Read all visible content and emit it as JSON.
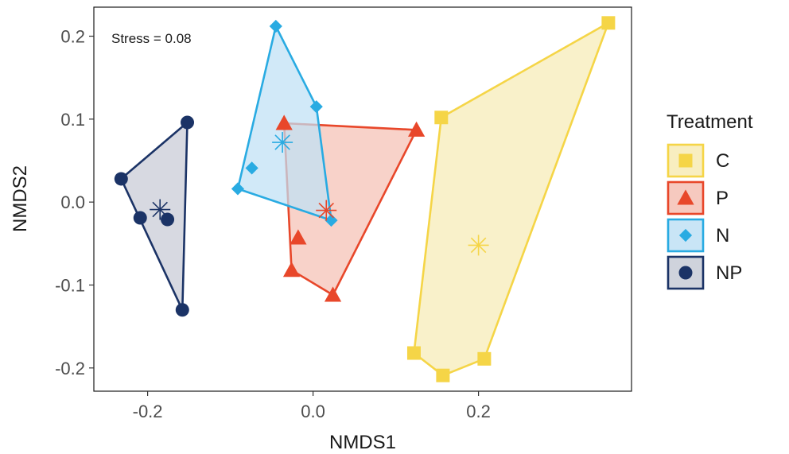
{
  "chart_data": {
    "type": "scatter",
    "xlabel": "NMDS1",
    "ylabel": "NMDS2",
    "xlim": [
      -0.265,
      0.385
    ],
    "ylim": [
      -0.228,
      0.235
    ],
    "x_ticks": [
      -0.2,
      0.0,
      0.2
    ],
    "x_tick_labels": [
      "-0.2",
      "0.0",
      "0.2"
    ],
    "y_ticks": [
      0.2,
      0.1,
      0.0,
      -0.1,
      -0.2
    ],
    "y_tick_labels": [
      "0.2",
      "0.1",
      "0.0",
      "-0.1",
      "-0.2"
    ],
    "grid": false,
    "annotation": "Stress = 0.08",
    "legend": {
      "title": "Treatment",
      "position": "right"
    },
    "series": [
      {
        "name": "C",
        "color": "#F5D547",
        "fill": "#F7EBB5",
        "marker": "square",
        "points": [
          [
            0.357,
            0.216
          ],
          [
            0.155,
            0.102
          ],
          [
            0.122,
            -0.182
          ],
          [
            0.157,
            -0.209
          ],
          [
            0.207,
            -0.189
          ]
        ],
        "hull": [
          [
            0.357,
            0.216
          ],
          [
            0.155,
            0.102
          ],
          [
            0.122,
            -0.182
          ],
          [
            0.157,
            -0.209
          ],
          [
            0.207,
            -0.189
          ]
        ],
        "centroid": [
          0.2,
          -0.052
        ]
      },
      {
        "name": "P",
        "color": "#E8472A",
        "fill": "#F5C0B4",
        "marker": "triangle",
        "points": [
          [
            -0.035,
            0.095
          ],
          [
            0.125,
            0.087
          ],
          [
            -0.018,
            -0.043
          ],
          [
            -0.026,
            -0.082
          ],
          [
            0.024,
            -0.112
          ]
        ],
        "hull": [
          [
            -0.035,
            0.095
          ],
          [
            0.125,
            0.087
          ],
          [
            0.024,
            -0.112
          ],
          [
            -0.026,
            -0.082
          ]
        ],
        "centroid": [
          0.016,
          -0.01
        ]
      },
      {
        "name": "N",
        "color": "#29ABE2",
        "fill": "#BFE1F5",
        "marker": "diamond",
        "points": [
          [
            -0.045,
            0.212
          ],
          [
            0.004,
            0.115
          ],
          [
            -0.074,
            0.041
          ],
          [
            -0.091,
            0.016
          ],
          [
            0.022,
            -0.022
          ]
        ],
        "hull": [
          [
            -0.045,
            0.212
          ],
          [
            0.004,
            0.115
          ],
          [
            0.022,
            -0.022
          ],
          [
            -0.091,
            0.016
          ]
        ],
        "centroid": [
          -0.037,
          0.072
        ]
      },
      {
        "name": "NP",
        "color": "#1B3366",
        "fill": "#C7CBD6",
        "marker": "circle",
        "points": [
          [
            -0.152,
            0.096
          ],
          [
            -0.232,
            0.028
          ],
          [
            -0.209,
            -0.019
          ],
          [
            -0.176,
            -0.021
          ],
          [
            -0.158,
            -0.13
          ]
        ],
        "hull": [
          [
            -0.152,
            0.096
          ],
          [
            -0.232,
            0.028
          ],
          [
            -0.158,
            -0.13
          ]
        ],
        "centroid": [
          -0.185,
          -0.009
        ]
      }
    ]
  }
}
